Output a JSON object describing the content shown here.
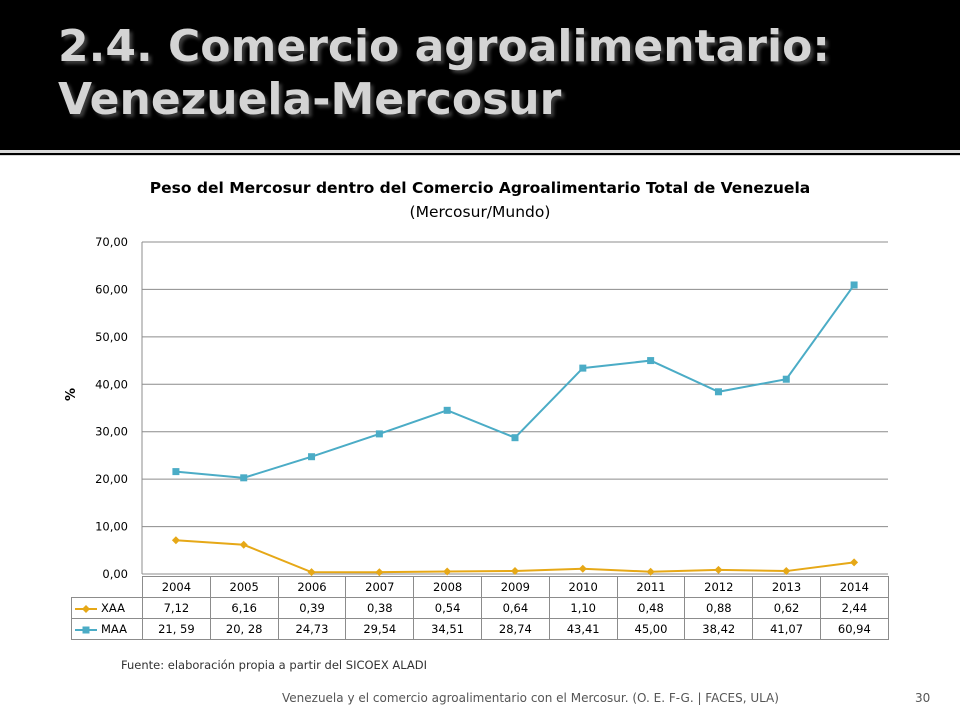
{
  "slide": {
    "title": "2.4. Comercio agroalimentario: Venezuela-Mercosur",
    "source_note": "Fuente: elaboración propia a partir del SICOEX ALADI",
    "footer": "Venezuela y el comercio agroalimentario con el Mercosur. (O. E. F-G. | FACES, ULA)",
    "page_number": "30"
  },
  "chart_data": {
    "type": "line",
    "title_bold": "Peso del Mercosur dentro del Comercio Agroalimentario Total de Venezuela",
    "title_normal": " (Mercosur/Mundo)",
    "xlabel": "",
    "ylabel": "%",
    "ylim": [
      0,
      70
    ],
    "yticks": [
      "0,00",
      "10,00",
      "20,00",
      "30,00",
      "40,00",
      "50,00",
      "60,00",
      "70,00"
    ],
    "grid": true,
    "legend": "data-table",
    "categories": [
      "2004",
      "2005",
      "2006",
      "2007",
      "2008",
      "2009",
      "2010",
      "2011",
      "2012",
      "2013",
      "2014"
    ],
    "series": [
      {
        "name": "XAA",
        "color": "#e6a817",
        "marker": "diamond",
        "values": [
          7.12,
          6.16,
          0.39,
          0.38,
          0.54,
          0.64,
          1.1,
          0.48,
          0.88,
          0.62,
          2.44
        ],
        "labels": [
          "7,12",
          "6,16",
          "0,39",
          "0,38",
          "0,54",
          "0,64",
          "1,10",
          "0,48",
          "0,88",
          "0,62",
          "2,44"
        ]
      },
      {
        "name": "MAA",
        "color": "#4bacc6",
        "marker": "square",
        "values": [
          21.59,
          20.28,
          24.73,
          29.54,
          34.51,
          28.74,
          43.41,
          45.0,
          38.42,
          41.07,
          60.94
        ],
        "labels": [
          "21, 59",
          "20, 28",
          "24,73",
          "29,54",
          "34,51",
          "28,74",
          "43,41",
          "45,00",
          "38,42",
          "41,07",
          "60,94"
        ]
      }
    ]
  }
}
